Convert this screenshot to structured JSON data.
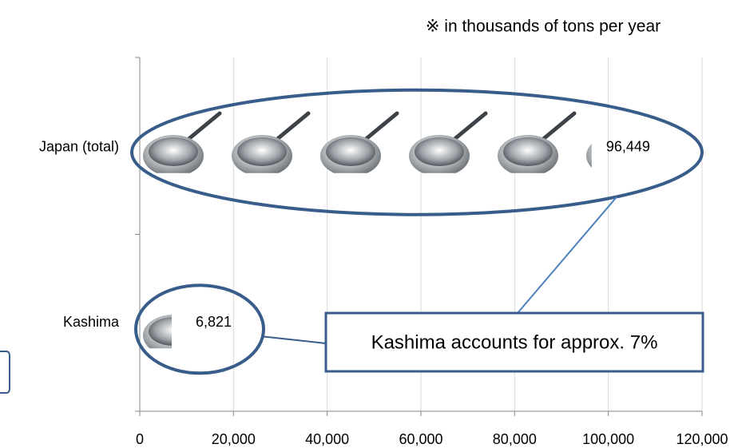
{
  "chart_data": {
    "type": "pictograph-bar",
    "note": "※ in thousands of tons per year",
    "callout": "Kashima accounts for approx. 7%",
    "categories": [
      "Japan (total)",
      "Kashima"
    ],
    "values": [
      96449,
      6821
    ],
    "value_labels": [
      "96,449",
      "6,821"
    ],
    "xlim": [
      0,
      120000
    ],
    "xticks": [
      0,
      {
        "value": 20000,
        "label": "20,000"
      },
      {
        "value": 40000,
        "label": "40,000"
      },
      {
        "value": 60000,
        "label": "60,000"
      },
      {
        "value": 80000,
        "label": "80,000"
      },
      {
        "value": 100000,
        "label": "100,000"
      },
      {
        "value": 120000,
        "label": "120,000"
      }
    ],
    "grid": true,
    "highlight_color": "#385d8a"
  }
}
